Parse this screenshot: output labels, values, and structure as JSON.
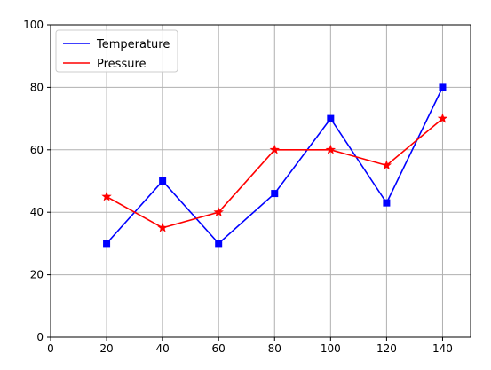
{
  "chart_data": {
    "type": "line",
    "title": "",
    "xlabel": "",
    "ylabel": "",
    "xlim": [
      0,
      150
    ],
    "ylim": [
      0,
      100
    ],
    "x_ticks": [
      0,
      20,
      40,
      60,
      80,
      100,
      120,
      140
    ],
    "y_ticks": [
      0,
      20,
      40,
      60,
      80,
      100
    ],
    "grid": true,
    "legend_placement": "top-left",
    "series": [
      {
        "name": "Temperature",
        "color": "#0000ff",
        "marker": "square",
        "points": [
          {
            "x": 20,
            "y": 30
          },
          {
            "x": 40,
            "y": 50
          },
          {
            "x": 60,
            "y": 30
          },
          {
            "x": 80,
            "y": 46
          },
          {
            "x": 100,
            "y": 70
          },
          {
            "x": 120,
            "y": 43
          },
          {
            "x": 140,
            "y": 80
          }
        ]
      },
      {
        "name": "Pressure",
        "color": "#ff0000",
        "marker": "star",
        "points": [
          {
            "x": 20,
            "y": 45
          },
          {
            "x": 40,
            "y": 35
          },
          {
            "x": 60,
            "y": 40
          },
          {
            "x": 80,
            "y": 60
          },
          {
            "x": 100,
            "y": 60
          },
          {
            "x": 120,
            "y": 55
          },
          {
            "x": 140,
            "y": 70
          }
        ]
      }
    ]
  }
}
